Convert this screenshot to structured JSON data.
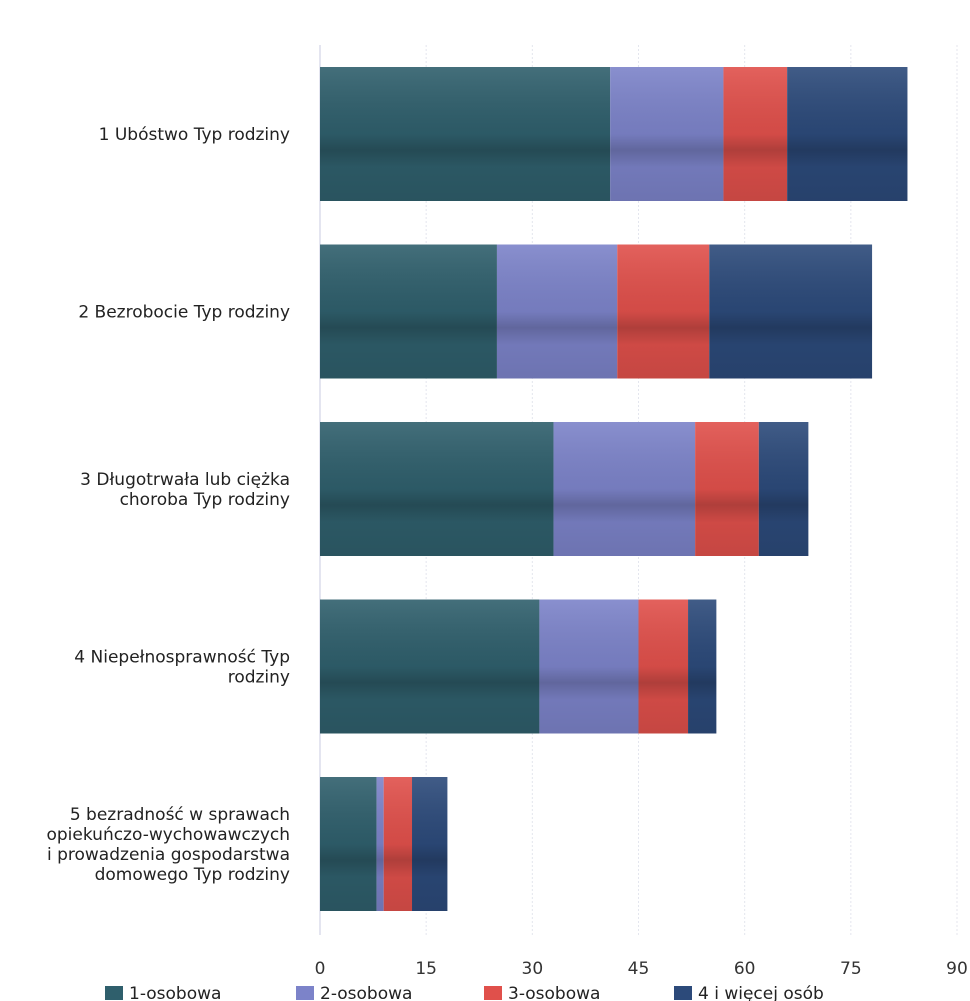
{
  "chart_data": {
    "type": "bar",
    "orientation": "horizontal",
    "stacked": true,
    "title": "",
    "xlabel": "",
    "ylabel": "",
    "xlim": [
      0,
      90
    ],
    "x_ticks": [
      0,
      15,
      30,
      45,
      60,
      75,
      90
    ],
    "grid": true,
    "legend_position": "bottom",
    "categories": [
      [
        "1 Ubóstwo Typ rodziny"
      ],
      [
        "2 Bezrobocie Typ rodziny"
      ],
      [
        "3 Długotrwała lub ciężka",
        "choroba Typ rodziny"
      ],
      [
        "4 Niepełnosprawność Typ",
        "rodziny"
      ],
      [
        "5 bezradność w sprawach",
        "opiekuńczo-wychowawczych",
        "i prowadzenia gospodarstwa",
        "domowego Typ rodziny"
      ]
    ],
    "series": [
      {
        "name": "1-osobowa",
        "color": "#2f5f6c",
        "values": [
          41,
          25,
          33,
          31,
          8
        ]
      },
      {
        "name": "2-osobowa",
        "color": "#7c83c9",
        "values": [
          16,
          17,
          20,
          14,
          1
        ]
      },
      {
        "name": "3-osobowa",
        "color": "#e0504b",
        "values": [
          9,
          13,
          9,
          7,
          4
        ]
      },
      {
        "name": "4  i więcej osób",
        "color": "#2c4a7a",
        "values": [
          17,
          23,
          7,
          4,
          5
        ]
      }
    ]
  }
}
